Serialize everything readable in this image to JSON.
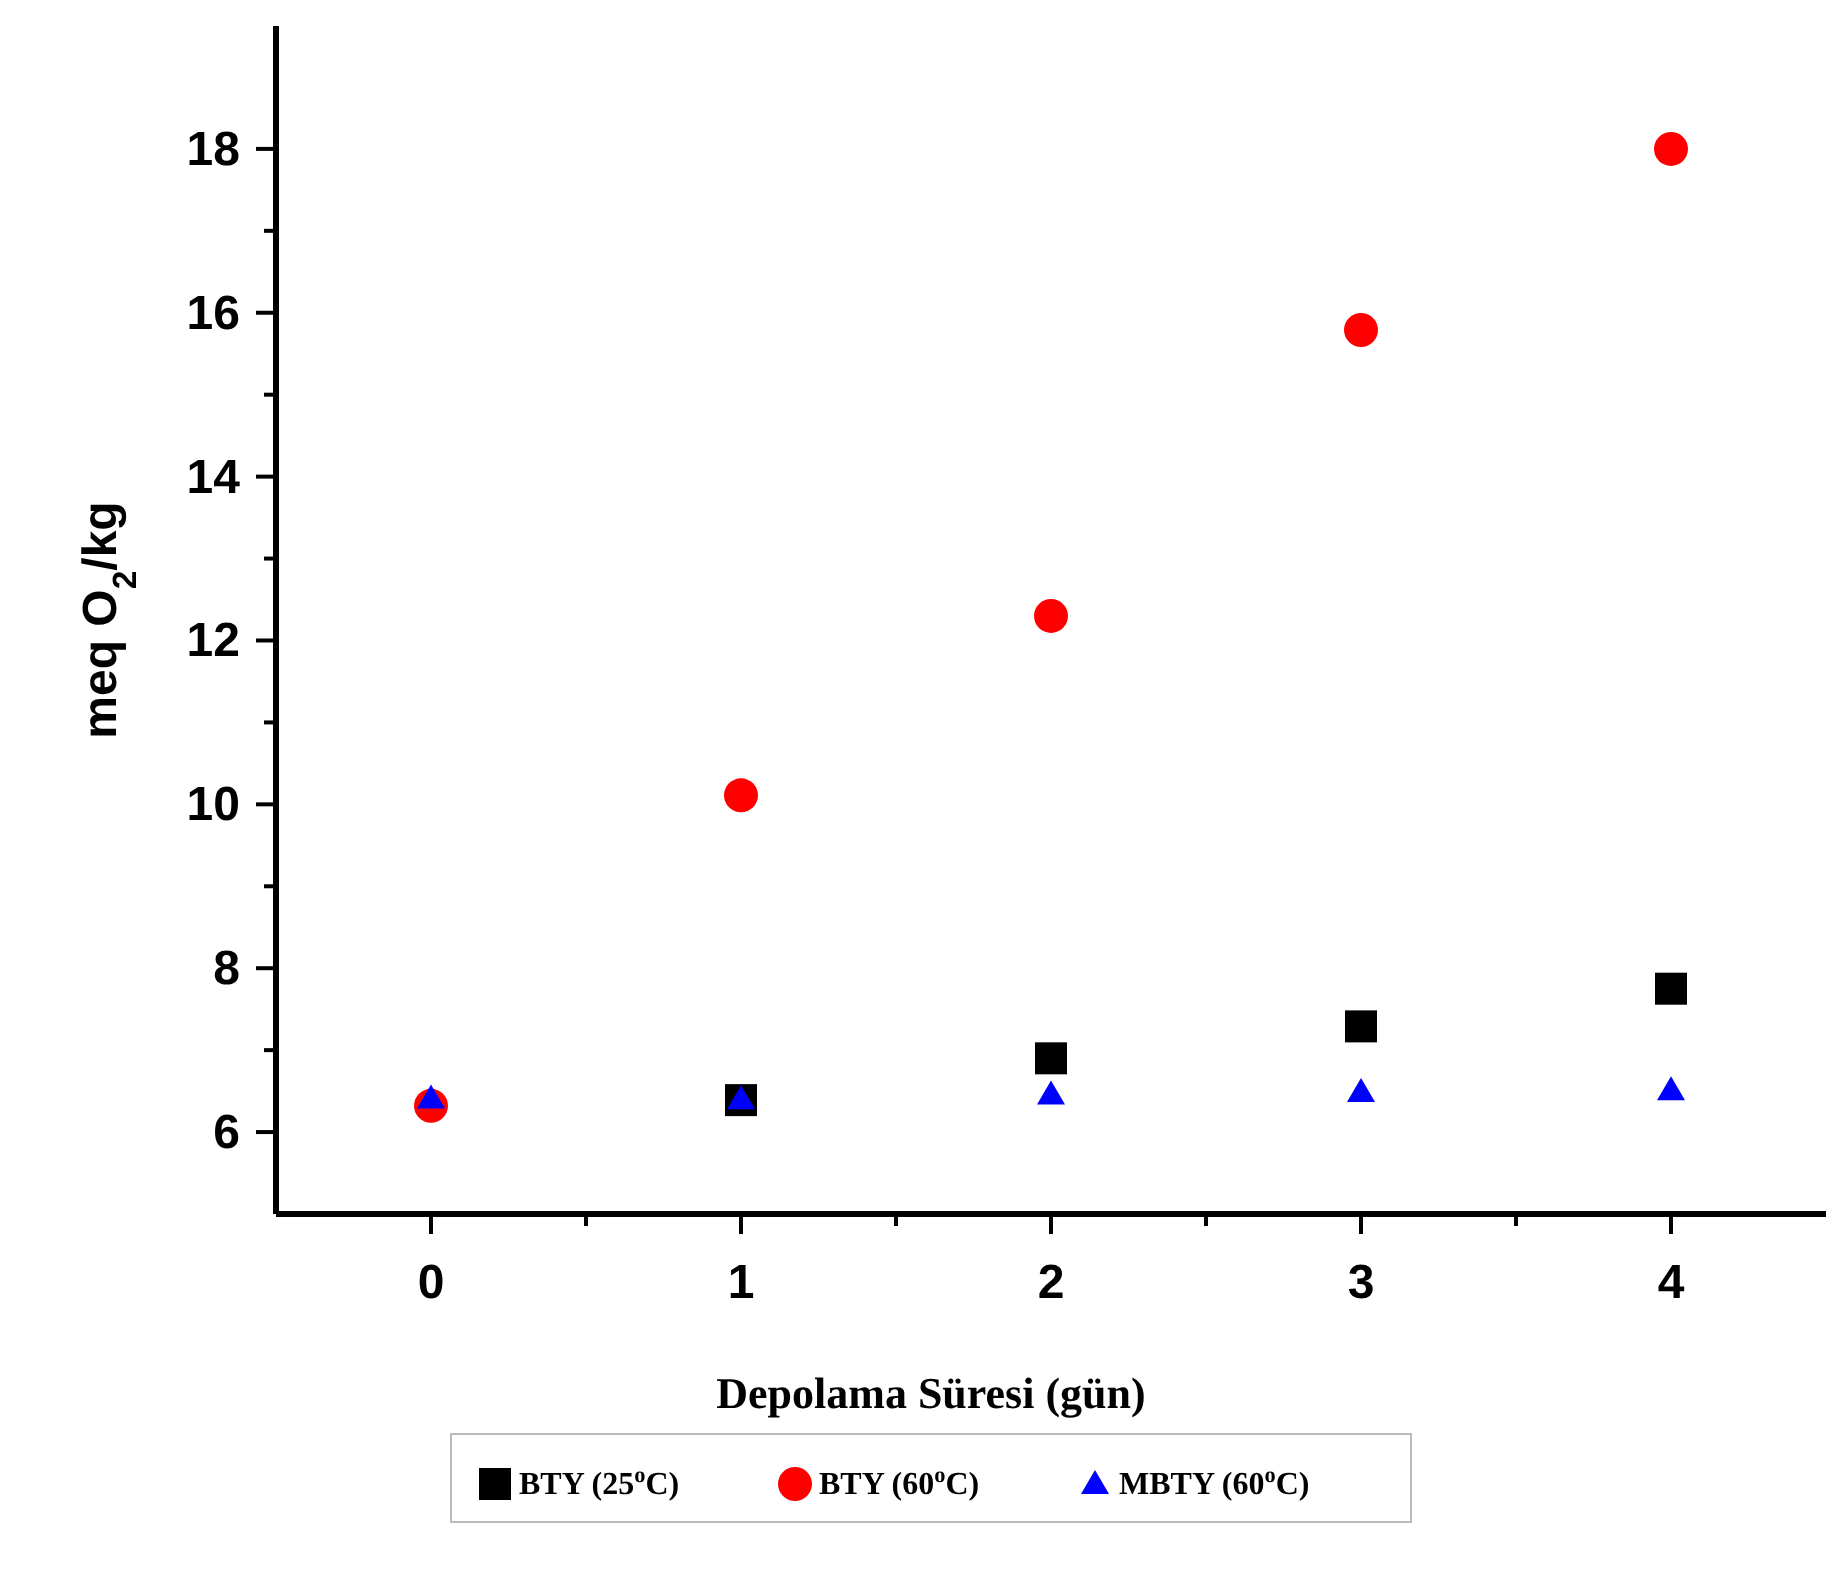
{
  "chart_data": {
    "type": "scatter",
    "xlabel": "Depolama Süresi (gün)",
    "ylabel": "meq O$_{2}$/kg",
    "x": [
      0,
      1,
      2,
      3,
      4
    ],
    "xlim": [
      -0.5,
      4.5
    ],
    "xticks": [
      0,
      1,
      2,
      3,
      4
    ],
    "ylim": [
      5,
      19.5
    ],
    "yticks": [
      6,
      8,
      10,
      12,
      14,
      16,
      18
    ],
    "series": [
      {
        "name": "BTY (25$^{o}$C)",
        "color": "#000000",
        "marker": "square",
        "values": [
          null,
          6.39,
          6.9,
          7.29,
          7.75
        ]
      },
      {
        "name": "BTY (60$^{o}$C)",
        "color": "#ff0000",
        "marker": "circle",
        "values": [
          6.32,
          10.11,
          12.3,
          15.79,
          18.0
        ]
      },
      {
        "name": "MBTY (60$^{o}$C)",
        "color": "#0000ff",
        "marker": "triangle",
        "values": [
          6.41,
          6.4,
          6.46,
          6.49,
          6.51
        ]
      }
    ],
    "legend": "bottom",
    "grid": false
  }
}
